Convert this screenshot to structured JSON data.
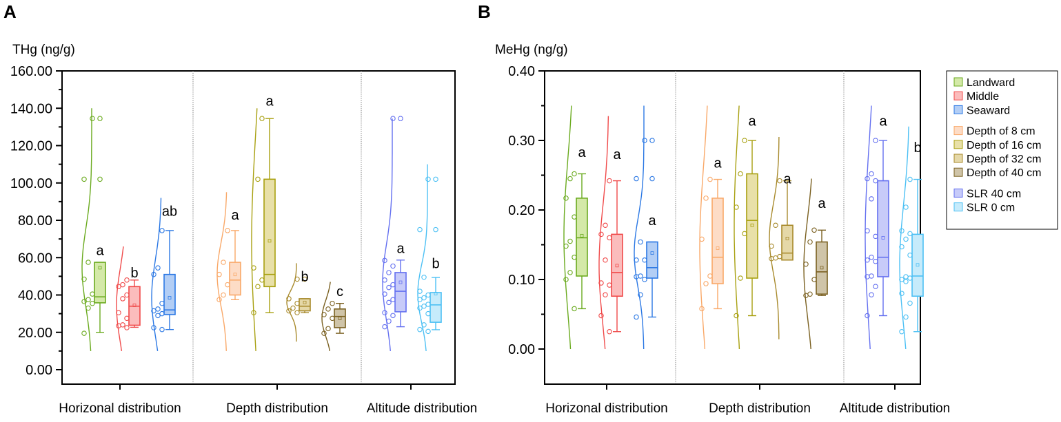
{
  "chart_data": [
    {
      "type": "box",
      "panel_label": "A",
      "ylabel": "THg (ng/g)",
      "ylim": [
        -7.7,
        160
      ],
      "yticks": [
        0,
        20,
        40,
        60,
        80,
        100,
        120,
        140,
        160
      ],
      "ytick_labels": [
        "0.00",
        "20.00",
        "40.00",
        "60.00",
        "80.00",
        "100.00",
        "120.00",
        "140.00",
        "160.00"
      ],
      "categories": [
        "Horizonal distribution",
        "Depth distribution",
        "Altitude distribution"
      ],
      "groups": [
        {
          "name": "Landward",
          "category": 0,
          "q1": 35.8,
          "median": 39,
          "q3": 57.5,
          "mean": 54.6,
          "whisker": [
            19.9,
            57.5
          ],
          "points": [
            134.5,
            134.5,
            102,
            102,
            57.5,
            48.5,
            40.5,
            37.5,
            36.5,
            35.5,
            33,
            19.5
          ],
          "curve": [
            10,
            140
          ],
          "letter": "a",
          "letter_y": 64
        },
        {
          "name": "Middle",
          "category": 0,
          "q1": 23.8,
          "median": 34,
          "q3": 44.5,
          "mean": 34.5,
          "whisker": [
            22.7,
            48
          ],
          "points": [
            48,
            45.5,
            44.5,
            40,
            38,
            30.5,
            27.5,
            24,
            23.5,
            22.5
          ],
          "curve": [
            10,
            66
          ],
          "letter": "b",
          "letter_y": 52
        },
        {
          "name": "Seaward",
          "category": 0,
          "q1": 29.5,
          "median": 32,
          "q3": 51,
          "mean": 38.5,
          "whisker": [
            21.5,
            74.5
          ],
          "points": [
            74.5,
            54.5,
            51,
            35.5,
            32.5,
            31.5,
            30,
            29,
            22.5,
            21.5
          ],
          "curve": [
            10,
            92
          ],
          "letter": "ab",
          "letter_y": 85
        },
        {
          "name": "Depth of 8 cm",
          "category": 1,
          "q1": 40,
          "median": 48,
          "q3": 57.5,
          "mean": 51,
          "whisker": [
            37.5,
            74.5
          ],
          "points": [
            74.5,
            57.5,
            51,
            45.5,
            40,
            37.5
          ],
          "curve": [
            10,
            95
          ],
          "letter": "a",
          "letter_y": 83
        },
        {
          "name": "Depth of 16 cm",
          "category": 1,
          "q1": 44.5,
          "median": 51,
          "q3": 102,
          "mean": 69,
          "whisker": [
            30.5,
            134.5
          ],
          "points": [
            134.5,
            102,
            54.5,
            48,
            44.5,
            30.5
          ],
          "curve": [
            10,
            140
          ],
          "letter": "a",
          "letter_y": 144
        },
        {
          "name": "Depth of 32 cm",
          "category": 1,
          "q1": 31.5,
          "median": 34,
          "q3": 38,
          "mean": 36,
          "whisker": [
            30.5,
            38
          ],
          "points": [
            48.5,
            48.5,
            38,
            35.5,
            33,
            31.5,
            30.5
          ],
          "curve": [
            15,
            57
          ],
          "letter": "b",
          "letter_y": 50
        },
        {
          "name": "Depth of 40 cm",
          "category": 1,
          "q1": 22.5,
          "median": 28.5,
          "q3": 32.5,
          "mean": 27.5,
          "whisker": [
            19.5,
            35.5
          ],
          "points": [
            35.5,
            32.5,
            29.5,
            27.5,
            22,
            19.5
          ],
          "curve": [
            10,
            47
          ],
          "letter": "c",
          "letter_y": 42
        },
        {
          "name": "SLR 40 cm",
          "category": 2,
          "q1": 31,
          "median": 42,
          "q3": 52,
          "mean": 46.8,
          "whisker": [
            23,
            58.7
          ],
          "points": [
            134.5,
            134.5,
            58.5,
            55.5,
            52,
            48,
            45.5,
            44,
            40.5,
            37.5,
            36,
            30.5,
            29,
            26,
            23
          ],
          "curve": [
            10,
            134.5
          ],
          "letter": "a",
          "letter_y": 65
        },
        {
          "name": "SLR 0 cm",
          "category": 2,
          "q1": 25.4,
          "median": 34.7,
          "q3": 41.3,
          "mean": 40.7,
          "whisker": [
            21.4,
            49.4
          ],
          "points": [
            102,
            102,
            75,
            75,
            49.5,
            42,
            40,
            38.5,
            37.5,
            35,
            34,
            33,
            30,
            24,
            21.5,
            20.5
          ],
          "curve": [
            10,
            110
          ],
          "letter": "b",
          "letter_y": 57
        }
      ]
    },
    {
      "type": "box",
      "panel_label": "B",
      "ylabel": "MeHg (ng/g)",
      "ylim": [
        -0.05,
        0.4
      ],
      "yticks": [
        0,
        0.1,
        0.2,
        0.3,
        0.4
      ],
      "ytick_labels": [
        "0.00",
        "0.10",
        "0.20",
        "0.30",
        "0.40"
      ],
      "categories": [
        "Horizonal distribution",
        "Depth distribution",
        "Altitude distribution"
      ],
      "groups": [
        {
          "name": "Landward",
          "category": 0,
          "q1": 0.105,
          "median": 0.16,
          "q3": 0.217,
          "mean": 0.163,
          "whisker": [
            0.058,
            0.252
          ],
          "points": [
            0.252,
            0.245,
            0.217,
            0.19,
            0.155,
            0.148,
            0.132,
            0.11,
            0.1,
            0.058
          ],
          "curve": [
            0,
            0.35
          ],
          "letter": "a",
          "letter_y": 0.283
        },
        {
          "name": "Middle",
          "category": 0,
          "q1": 0.076,
          "median": 0.11,
          "q3": 0.165,
          "mean": 0.12,
          "whisker": [
            0.025,
            0.242
          ],
          "points": [
            0.242,
            0.178,
            0.165,
            0.16,
            0.128,
            0.095,
            0.092,
            0.078,
            0.048,
            0.025
          ],
          "curve": [
            0,
            0.335
          ],
          "letter": "a",
          "letter_y": 0.28
        },
        {
          "name": "Seaward",
          "category": 0,
          "q1": 0.102,
          "median": 0.117,
          "q3": 0.154,
          "mean": 0.138,
          "whisker": [
            0.046,
            0.154
          ],
          "points": [
            0.3,
            0.3,
            0.245,
            0.245,
            0.154,
            0.128,
            0.128,
            0.105,
            0.104,
            0.1,
            0.078,
            0.046
          ],
          "curve": [
            0,
            0.35
          ],
          "letter": "a",
          "letter_y": 0.185
        },
        {
          "name": "Depth of 8 cm",
          "category": 1,
          "q1": 0.094,
          "median": 0.132,
          "q3": 0.217,
          "mean": 0.145,
          "whisker": [
            0.058,
            0.244
          ],
          "points": [
            0.244,
            0.217,
            0.158,
            0.105,
            0.094,
            0.058
          ],
          "curve": [
            0,
            0.35
          ],
          "letter": "a",
          "letter_y": 0.268
        },
        {
          "name": "Depth of 16 cm",
          "category": 1,
          "q1": 0.102,
          "median": 0.185,
          "q3": 0.252,
          "mean": 0.178,
          "whisker": [
            0.048,
            0.3
          ],
          "points": [
            0.3,
            0.252,
            0.204,
            0.166,
            0.102,
            0.048
          ],
          "curve": [
            0,
            0.35
          ],
          "letter": "a",
          "letter_y": 0.328
        },
        {
          "name": "Depth of 32 cm",
          "category": 1,
          "q1": 0.128,
          "median": 0.138,
          "q3": 0.178,
          "mean": 0.159,
          "whisker": [
            0.128,
            0.242
          ],
          "points": [
            0.242,
            0.178,
            0.148,
            0.133,
            0.131,
            0.13
          ],
          "curve": [
            0.014,
            0.305
          ],
          "letter": "a",
          "letter_y": 0.245
        },
        {
          "name": "Depth of 40 cm",
          "category": 1,
          "q1": 0.079,
          "median": 0.111,
          "q3": 0.154,
          "mean": 0.117,
          "whisker": [
            0.077,
            0.171
          ],
          "points": [
            0.171,
            0.154,
            0.122,
            0.1,
            0.079,
            0.077
          ],
          "curve": [
            0,
            0.245
          ],
          "letter": "a",
          "letter_y": 0.21
        },
        {
          "name": "SLR 40 cm",
          "category": 2,
          "q1": 0.104,
          "median": 0.132,
          "q3": 0.242,
          "mean": 0.16,
          "whisker": [
            0.048,
            0.3
          ],
          "points": [
            0.3,
            0.252,
            0.245,
            0.242,
            0.216,
            0.17,
            0.162,
            0.132,
            0.128,
            0.126,
            0.105,
            0.104,
            0.09,
            0.078,
            0.048
          ],
          "curve": [
            0,
            0.35
          ],
          "letter": "a",
          "letter_y": 0.328
        },
        {
          "name": "SLR 0 cm",
          "category": 2,
          "q1": 0.076,
          "median": 0.105,
          "q3": 0.165,
          "mean": 0.121,
          "whisker": [
            0.025,
            0.244
          ],
          "points": [
            0.244,
            0.204,
            0.17,
            0.166,
            0.158,
            0.147,
            0.135,
            0.104,
            0.1,
            0.102,
            0.097,
            0.08,
            0.066,
            0.046,
            0.025
          ],
          "curve": [
            0,
            0.32
          ],
          "letter": "b",
          "letter_y": 0.29
        }
      ]
    }
  ],
  "legend": {
    "placement": "right",
    "items": [
      {
        "label": "Landward",
        "stroke": "#6aaa1e",
        "fill": "#d4e9a8"
      },
      {
        "label": "Middle",
        "stroke": "#f04a4a",
        "fill": "#fbbcbc"
      },
      {
        "label": "Seaward",
        "stroke": "#2b78e4",
        "fill": "#b3cef5"
      },
      {
        "label": "Depth of 8 cm",
        "stroke": "#f9a868",
        "fill": "#fddcc6"
      },
      {
        "label": "Depth of 16 cm",
        "stroke": "#a8a010",
        "fill": "#e8e0a8"
      },
      {
        "label": "Depth of 32 cm",
        "stroke": "#a88a2c",
        "fill": "#e5d8a8"
      },
      {
        "label": "Depth of 40 cm",
        "stroke": "#7a6020",
        "fill": "#cfc4a8"
      },
      {
        "label": "SLR 40 cm",
        "stroke": "#6470f0",
        "fill": "#c7cbf9"
      },
      {
        "label": "SLR 0 cm",
        "stroke": "#4cc0f4",
        "fill": "#c6ebfb"
      }
    ]
  }
}
